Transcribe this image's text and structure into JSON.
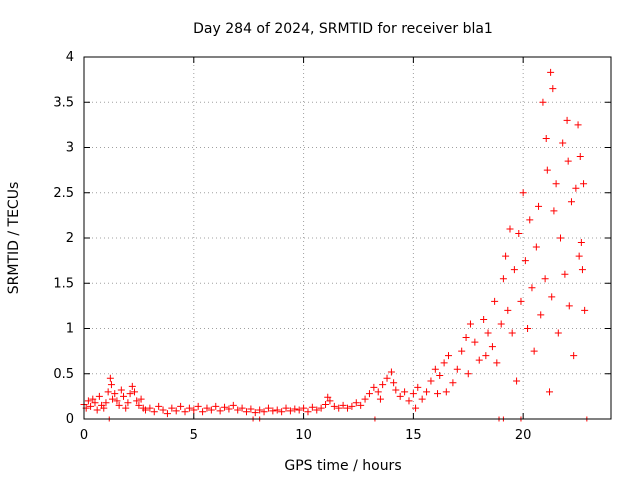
{
  "chart_data": {
    "type": "scatter",
    "title": "Day 284 of 2024, SRMTID for receiver bla1",
    "xlabel": "GPS time / hours",
    "ylabel": "SRMTID / TECUs",
    "xlim": [
      0,
      24
    ],
    "ylim": [
      0,
      4
    ],
    "xticks": [
      "0",
      "5",
      "10",
      "15",
      "20"
    ],
    "yticks": [
      "0",
      "0.5",
      "1",
      "1.5",
      "2",
      "2.5",
      "3",
      "3.5",
      "4"
    ],
    "grid": true,
    "marker": "+",
    "color": "#ff0000",
    "series": [
      {
        "name": "SRMTID",
        "points": [
          [
            0.0,
            0.16
          ],
          [
            0.1,
            0.12
          ],
          [
            0.2,
            0.2
          ],
          [
            0.3,
            0.14
          ],
          [
            0.4,
            0.22
          ],
          [
            0.5,
            0.18
          ],
          [
            0.6,
            0.1
          ],
          [
            0.7,
            0.25
          ],
          [
            0.8,
            0.15
          ],
          [
            0.9,
            0.12
          ],
          [
            1.0,
            0.18
          ],
          [
            1.1,
            0.3
          ],
          [
            1.2,
            0.45
          ],
          [
            1.25,
            0.38
          ],
          [
            1.3,
            0.22
          ],
          [
            1.4,
            0.28
          ],
          [
            1.5,
            0.2
          ],
          [
            1.6,
            0.15
          ],
          [
            1.7,
            0.32
          ],
          [
            1.8,
            0.25
          ],
          [
            1.9,
            0.12
          ],
          [
            2.0,
            0.18
          ],
          [
            2.1,
            0.28
          ],
          [
            2.2,
            0.36
          ],
          [
            2.3,
            0.3
          ],
          [
            2.4,
            0.2
          ],
          [
            2.5,
            0.15
          ],
          [
            2.6,
            0.22
          ],
          [
            2.7,
            0.12
          ],
          [
            2.8,
            0.1
          ],
          [
            3.0,
            0.12
          ],
          [
            3.2,
            0.08
          ],
          [
            3.4,
            0.14
          ],
          [
            3.6,
            0.1
          ],
          [
            3.8,
            0.06
          ],
          [
            4.0,
            0.12
          ],
          [
            4.2,
            0.09
          ],
          [
            4.4,
            0.14
          ],
          [
            4.6,
            0.08
          ],
          [
            4.8,
            0.12
          ],
          [
            5.0,
            0.1
          ],
          [
            5.2,
            0.14
          ],
          [
            5.4,
            0.08
          ],
          [
            5.6,
            0.12
          ],
          [
            5.8,
            0.1
          ],
          [
            6.0,
            0.14
          ],
          [
            6.2,
            0.09
          ],
          [
            6.4,
            0.13
          ],
          [
            6.6,
            0.11
          ],
          [
            6.8,
            0.15
          ],
          [
            7.0,
            0.1
          ],
          [
            7.2,
            0.12
          ],
          [
            7.4,
            0.08
          ],
          [
            7.6,
            0.11
          ],
          [
            7.8,
            0.07
          ],
          [
            8.0,
            0.1
          ],
          [
            8.2,
            0.08
          ],
          [
            8.4,
            0.12
          ],
          [
            8.6,
            0.09
          ],
          [
            8.8,
            0.1
          ],
          [
            9.0,
            0.08
          ],
          [
            9.2,
            0.12
          ],
          [
            9.4,
            0.09
          ],
          [
            9.6,
            0.11
          ],
          [
            9.8,
            0.1
          ],
          [
            10.0,
            0.12
          ],
          [
            10.2,
            0.08
          ],
          [
            10.4,
            0.13
          ],
          [
            10.6,
            0.1
          ],
          [
            10.8,
            0.12
          ],
          [
            11.0,
            0.16
          ],
          [
            11.1,
            0.24
          ],
          [
            11.2,
            0.2
          ],
          [
            11.4,
            0.14
          ],
          [
            11.6,
            0.12
          ],
          [
            11.8,
            0.15
          ],
          [
            12.0,
            0.12
          ],
          [
            12.2,
            0.14
          ],
          [
            12.4,
            0.18
          ],
          [
            12.6,
            0.15
          ],
          [
            12.8,
            0.22
          ],
          [
            13.0,
            0.28
          ],
          [
            13.2,
            0.35
          ],
          [
            13.4,
            0.3
          ],
          [
            13.5,
            0.22
          ],
          [
            13.6,
            0.38
          ],
          [
            13.8,
            0.45
          ],
          [
            14.0,
            0.52
          ],
          [
            14.1,
            0.4
          ],
          [
            14.2,
            0.32
          ],
          [
            14.4,
            0.25
          ],
          [
            14.6,
            0.3
          ],
          [
            14.8,
            0.2
          ],
          [
            15.0,
            0.28
          ],
          [
            15.1,
            0.12
          ],
          [
            15.2,
            0.35
          ],
          [
            15.4,
            0.22
          ],
          [
            15.6,
            0.3
          ],
          [
            15.8,
            0.42
          ],
          [
            16.0,
            0.55
          ],
          [
            16.1,
            0.28
          ],
          [
            16.2,
            0.48
          ],
          [
            16.4,
            0.62
          ],
          [
            16.5,
            0.3
          ],
          [
            16.6,
            0.7
          ],
          [
            16.8,
            0.4
          ],
          [
            17.0,
            0.55
          ],
          [
            17.2,
            0.75
          ],
          [
            17.4,
            0.9
          ],
          [
            17.5,
            0.5
          ],
          [
            17.6,
            1.05
          ],
          [
            17.8,
            0.85
          ],
          [
            18.0,
            0.65
          ],
          [
            18.2,
            1.1
          ],
          [
            18.3,
            0.7
          ],
          [
            18.4,
            0.95
          ],
          [
            18.6,
            0.8
          ],
          [
            18.7,
            1.3
          ],
          [
            18.8,
            0.62
          ],
          [
            19.0,
            1.05
          ],
          [
            19.1,
            1.55
          ],
          [
            19.2,
            1.8
          ],
          [
            19.3,
            1.2
          ],
          [
            19.4,
            2.1
          ],
          [
            19.5,
            0.95
          ],
          [
            19.6,
            1.65
          ],
          [
            19.7,
            0.42
          ],
          [
            19.8,
            2.05
          ],
          [
            19.9,
            1.3
          ],
          [
            20.0,
            2.5
          ],
          [
            20.1,
            1.75
          ],
          [
            20.2,
            1.0
          ],
          [
            20.3,
            2.2
          ],
          [
            20.4,
            1.45
          ],
          [
            20.5,
            0.75
          ],
          [
            20.6,
            1.9
          ],
          [
            20.7,
            2.35
          ],
          [
            20.8,
            1.15
          ],
          [
            20.9,
            3.5
          ],
          [
            21.0,
            1.55
          ],
          [
            21.05,
            3.1
          ],
          [
            21.1,
            2.75
          ],
          [
            21.2,
            0.3
          ],
          [
            21.25,
            3.83
          ],
          [
            21.3,
            1.35
          ],
          [
            21.35,
            3.65
          ],
          [
            21.4,
            2.3
          ],
          [
            21.5,
            2.6
          ],
          [
            21.6,
            0.95
          ],
          [
            21.7,
            2.0
          ],
          [
            21.8,
            3.05
          ],
          [
            21.9,
            1.6
          ],
          [
            22.0,
            3.3
          ],
          [
            22.05,
            2.85
          ],
          [
            22.1,
            1.25
          ],
          [
            22.2,
            2.4
          ],
          [
            22.3,
            0.7
          ],
          [
            22.4,
            2.55
          ],
          [
            22.5,
            3.25
          ],
          [
            22.55,
            1.8
          ],
          [
            22.6,
            2.9
          ],
          [
            22.65,
            1.95
          ],
          [
            22.7,
            1.65
          ],
          [
            22.75,
            2.6
          ],
          [
            22.8,
            1.2
          ]
        ]
      }
    ],
    "zero_markers": [
      1.15,
      7.7,
      8.0,
      13.25,
      18.9,
      19.1,
      19.9,
      22.9
    ]
  }
}
